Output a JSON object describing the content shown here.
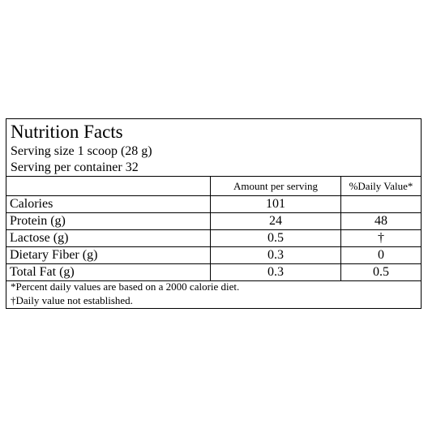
{
  "label": {
    "title": "Nutrition Facts",
    "serving_size": "Serving size 1 scoop (28 g)",
    "servings_per_container": "Serving per container 32"
  },
  "table": {
    "headers": {
      "name": "",
      "amount": "Amount per serving",
      "daily_value": "%Daily Value*"
    },
    "rows": [
      {
        "name": "Calories",
        "amount": "101",
        "daily_value": ""
      },
      {
        "name": "Protein (g)",
        "amount": "24",
        "daily_value": "48"
      },
      {
        "name": "Lactose (g)",
        "amount": "0.5",
        "daily_value": "†"
      },
      {
        "name": "Dietary Fiber (g)",
        "amount": "0.3",
        "daily_value": "0"
      },
      {
        "name": "Total Fat (g)",
        "amount": "0.3",
        "daily_value": "0.5"
      }
    ]
  },
  "footnotes": [
    "*Percent daily values are based on a 2000 calorie diet.",
    "†Daily value not established."
  ]
}
